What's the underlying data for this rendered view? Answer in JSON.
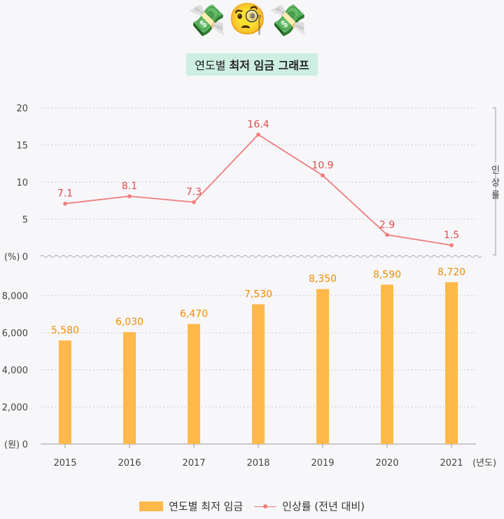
{
  "header": {
    "emojis": [
      "💸",
      "🧐",
      "💸"
    ],
    "title_prefix": "연도별",
    "title_bold": "최저 임금 그래프"
  },
  "chart_data": {
    "type": "bar",
    "categories": [
      "2015",
      "2016",
      "2017",
      "2018",
      "2019",
      "2020",
      "2021"
    ],
    "x_unit": "(년도)",
    "series": [
      {
        "name": "연도별 최저 임금",
        "type": "bar",
        "values": [
          5580,
          6030,
          6470,
          7530,
          8350,
          8590,
          8720
        ],
        "value_labels": [
          "5,580",
          "6,030",
          "6,470",
          "7,530",
          "8,350",
          "8,590",
          "8,720"
        ],
        "color": "#ffb84a",
        "label_color": "#ef8c00",
        "axis_unit": "(원)",
        "y_ticks": [
          "2,000",
          "4,000",
          "6,000",
          "8,000"
        ],
        "ylim": [
          0,
          10000
        ]
      },
      {
        "name": "인상률 (전년 대비)",
        "type": "line",
        "values": [
          7.1,
          8.1,
          7.3,
          16.4,
          10.9,
          2.9,
          1.5
        ],
        "value_labels": [
          "7.1",
          "8.1",
          "7.3",
          "16.4",
          "10.9",
          "2.9",
          "1.5"
        ],
        "color": "#ee7b7b",
        "label_color": "#e04a4a",
        "axis_unit": "(%)",
        "y_ticks": [
          "5",
          "10",
          "15",
          "20"
        ],
        "ylim": [
          0,
          20
        ],
        "side_label": "인상률"
      }
    ],
    "zero_label": "0",
    "grid": true,
    "legend_position": "bottom"
  },
  "legend": {
    "bar_label": "연도별 최저 임금",
    "line_label": "인상률 (전년 대비)"
  }
}
